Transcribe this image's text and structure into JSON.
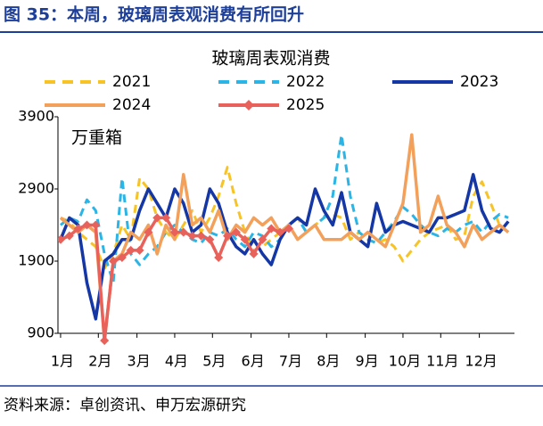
{
  "header": {
    "title": "图 35：本周，玻璃周表观消费有所回升"
  },
  "chart_data": {
    "type": "line",
    "title": "玻璃周表观消费",
    "annotation": "万重箱",
    "x": [
      1,
      2,
      3,
      4,
      5,
      6,
      7,
      8,
      9,
      10,
      11,
      12,
      13,
      14,
      15,
      16,
      17,
      18,
      19,
      20,
      21,
      22,
      23,
      24,
      25,
      26,
      27,
      28,
      29,
      30,
      31,
      32,
      33,
      34,
      35,
      36,
      37,
      38,
      39,
      40,
      41,
      42,
      43,
      44,
      45,
      46,
      47,
      48,
      49,
      50,
      51,
      52
    ],
    "xlim": [
      0.7,
      52.7
    ],
    "xticks": [
      {
        "value": 1,
        "label": "1月"
      },
      {
        "value": 5.3,
        "label": "2月"
      },
      {
        "value": 9.7,
        "label": "3月"
      },
      {
        "value": 14,
        "label": "4月"
      },
      {
        "value": 18.3,
        "label": "5月"
      },
      {
        "value": 22.7,
        "label": "6月"
      },
      {
        "value": 27,
        "label": "7月"
      },
      {
        "value": 31.3,
        "label": "8月"
      },
      {
        "value": 35.7,
        "label": "9月"
      },
      {
        "value": 40,
        "label": "10月"
      },
      {
        "value": 44.3,
        "label": "11月"
      },
      {
        "value": 48.7,
        "label": "12月"
      }
    ],
    "ylim": [
      900,
      3900
    ],
    "yticks": [
      900,
      1900,
      2900,
      3900
    ],
    "series": [
      {
        "name": "2021",
        "color": "#f7c325",
        "dashed": true,
        "values": [
          2500,
          2450,
          2300,
          2200,
          2100,
          1800,
          2000,
          2400,
          2200,
          3050,
          2900,
          2500,
          2300,
          2200,
          2400,
          2600,
          2300,
          2500,
          2800,
          3200,
          2700,
          2300,
          2050,
          2100,
          2200,
          2300,
          2400,
          2500,
          2300,
          2400,
          2500,
          2550,
          2500,
          2200,
          2300,
          2200,
          2150,
          2200,
          2100,
          1900,
          2050,
          2200,
          2300,
          2350,
          2400,
          2200,
          2250,
          2800,
          3000,
          2700,
          2400,
          2300
        ]
      },
      {
        "name": "2022",
        "color": "#2bb5e6",
        "dashed": true,
        "values": [
          2400,
          2500,
          2450,
          2750,
          2600,
          2000,
          1600,
          3050,
          2000,
          1850,
          2000,
          2100,
          2300,
          2400,
          2300,
          2200,
          2150,
          2300,
          2250,
          2350,
          2200,
          2100,
          2300,
          2250,
          2100,
          2200,
          2400,
          2500,
          2300,
          2400,
          2500,
          2800,
          3650,
          2800,
          2300,
          2200,
          2150,
          2300,
          2450,
          2650,
          2550,
          2400,
          2300,
          2250,
          2350,
          2300,
          2400,
          2450,
          2300,
          2450,
          2550,
          2500
        ]
      },
      {
        "name": "2023",
        "color": "#1537a6",
        "values": [
          2200,
          2500,
          2400,
          1600,
          1100,
          1900,
          2000,
          2200,
          2200,
          2600,
          2900,
          2700,
          2500,
          2900,
          2700,
          2300,
          2400,
          2900,
          2700,
          2300,
          2100,
          2000,
          2200,
          2000,
          1850,
          2200,
          2400,
          2500,
          2400,
          2900,
          2600,
          2400,
          2850,
          2300,
          2200,
          2100,
          2700,
          2300,
          2400,
          2450,
          2400,
          2350,
          2300,
          2500,
          2500,
          2550,
          2600,
          3100,
          2600,
          2350,
          2300,
          2450
        ]
      },
      {
        "name": "2024",
        "color": "#f3a05b",
        "values": [
          2500,
          2400,
          2300,
          2400,
          2300,
          800,
          1900,
          2000,
          2300,
          2200,
          2400,
          2000,
          2400,
          2200,
          3100,
          2400,
          2500,
          2300,
          2600,
          2200,
          2400,
          2300,
          2500,
          2400,
          2500,
          2300,
          2400,
          2200,
          2300,
          2400,
          2200,
          2200,
          2200,
          2300,
          2200,
          2300,
          2200,
          2100,
          2400,
          2700,
          3650,
          2300,
          2400,
          2800,
          2400,
          2300,
          2100,
          2400,
          2200,
          2300,
          2400,
          2300
        ]
      },
      {
        "name": "2025",
        "color": "#e8615b",
        "marker": "diamond",
        "values": [
          2200,
          2250,
          2350,
          2400,
          2400,
          800,
          1900,
          1950,
          2050,
          2050,
          2300,
          2500,
          2500,
          2300,
          2300,
          2250,
          2250,
          2200,
          1950,
          2250,
          2300,
          2200,
          2000,
          2200,
          2350,
          2300,
          2350,
          null,
          null,
          null,
          null,
          null,
          null,
          null,
          null,
          null,
          null,
          null,
          null,
          null,
          null,
          null,
          null,
          null,
          null,
          null,
          null,
          null,
          null,
          null,
          null,
          null
        ]
      }
    ]
  },
  "footer": {
    "source": "资料来源：卓创资讯、申万宏源研究"
  }
}
